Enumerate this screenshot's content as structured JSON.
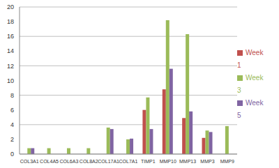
{
  "chart_data": {
    "type": "bar",
    "categories": [
      "COL3A1",
      "COL4A5",
      "COL6A3",
      "COL8A2",
      "COL17A1",
      "COL7A1",
      "TIMP1",
      "MMP10",
      "MMP13",
      "MMP3",
      "MMP9"
    ],
    "series": [
      {
        "name": "Week 1",
        "color": "#c0504d",
        "values": [
          0,
          0,
          0,
          0,
          0,
          0,
          6.0,
          8.8,
          4.9,
          2.2,
          0
        ]
      },
      {
        "name": "Week 3",
        "color": "#9bbb59",
        "values": [
          0.8,
          0.8,
          0.8,
          0.8,
          3.6,
          2.0,
          7.7,
          18.2,
          16.3,
          3.2,
          3.8
        ]
      },
      {
        "name": "Week 5",
        "color": "#8064a2",
        "values": [
          0.8,
          0,
          0,
          0,
          3.4,
          2.1,
          3.4,
          11.6,
          5.8,
          3.0,
          0
        ]
      }
    ],
    "ylim": [
      0,
      20
    ],
    "yticks": [
      0,
      2,
      4,
      6,
      8,
      10,
      12,
      14,
      16,
      18,
      20
    ],
    "grid": true,
    "legend": "right"
  }
}
